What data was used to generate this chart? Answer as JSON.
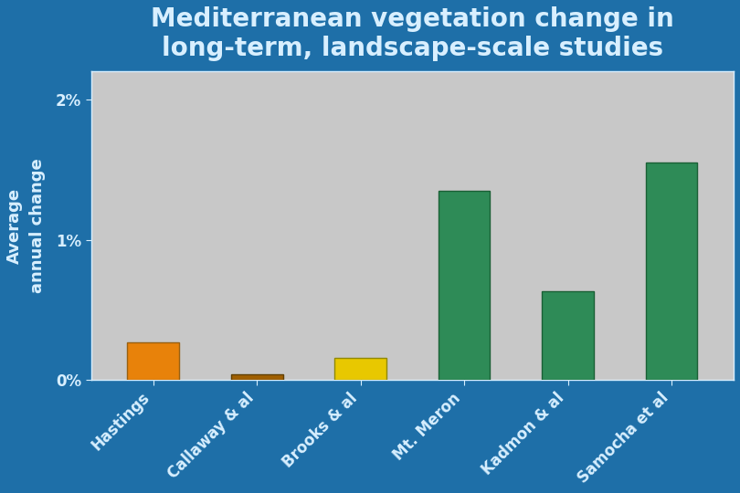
{
  "categories": [
    "Hastings",
    "Callaway & al",
    "Brooks & al",
    "Mt. Meron",
    "Kadmon & al",
    "Samocha et al"
  ],
  "values": [
    0.0027,
    0.0004,
    0.0016,
    0.0135,
    0.0063,
    0.0155
  ],
  "bar_colors": [
    "#E8820A",
    "#A06000",
    "#E8C800",
    "#2E8B57",
    "#2E8B57",
    "#2E8B57"
  ],
  "bar_edge_colors": [
    "#996010",
    "#604000",
    "#908800",
    "#1A6035",
    "#1A6035",
    "#1A6035"
  ],
  "title_line1": "Mediterranean vegetation change in",
  "title_line2": "long-term, landscape-scale studies",
  "ylabel": "Average\nannual change",
  "yticks": [
    0.0,
    0.01,
    0.02
  ],
  "ytick_labels": [
    "0%",
    "1%",
    "2%"
  ],
  "ylim": [
    0,
    0.022
  ],
  "background_color": "#1E6FA8",
  "plot_bg_color": "#C8C8C8",
  "title_color": "#D8EFFF",
  "label_color": "#D8EFFF",
  "tick_color": "#D8EFFF",
  "title_fontsize": 20,
  "label_fontsize": 13,
  "tick_fontsize": 12,
  "figsize": [
    8.1,
    5.4
  ],
  "dpi": 100
}
